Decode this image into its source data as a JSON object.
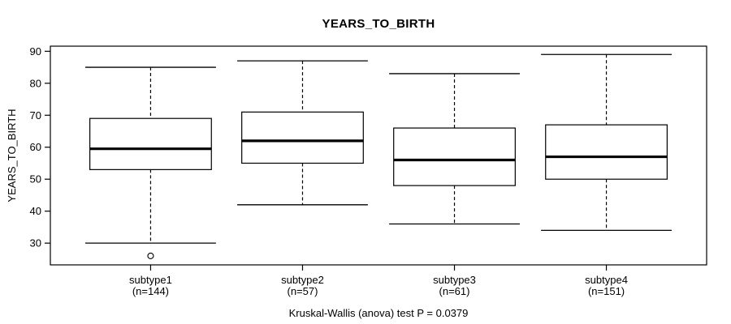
{
  "figure": {
    "title": "YEARS_TO_BIRTH",
    "ylabel": "YEARS_TO_BIRTH",
    "caption": "Kruskal-Wallis (anova) test P = 0.0379"
  },
  "chart_data": {
    "type": "boxplot",
    "title": "YEARS_TO_BIRTH",
    "xlabel": "",
    "ylabel": "YEARS_TO_BIRTH",
    "caption": "Kruskal-Wallis (anova) test P = 0.0379",
    "grid": false,
    "frame": true,
    "legend": "none",
    "ylim": [
      23.2,
      91.6
    ],
    "yticks": [
      30,
      40,
      50,
      60,
      70,
      80,
      90
    ],
    "xlim": [
      0.34,
      4.66
    ],
    "box_width": 0.8,
    "staple_width": 0.43,
    "categories": [
      "subtype1",
      "subtype2",
      "subtype3",
      "subtype4"
    ],
    "groups": [
      {
        "label": "subtype1",
        "n_label": "(n=144)",
        "x": 1,
        "whisker_low": 30,
        "q1": 53,
        "median": 59.5,
        "q3": 69,
        "whisker_high": 85,
        "outliers": [
          26
        ]
      },
      {
        "label": "subtype2",
        "n_label": "(n=57)",
        "x": 2,
        "whisker_low": 42,
        "q1": 55,
        "median": 62,
        "q3": 71,
        "whisker_high": 87,
        "outliers": []
      },
      {
        "label": "subtype3",
        "n_label": "(n=61)",
        "x": 3,
        "whisker_low": 36,
        "q1": 48,
        "median": 56,
        "q3": 66,
        "whisker_high": 83,
        "outliers": []
      },
      {
        "label": "subtype4",
        "n_label": "(n=151)",
        "x": 4,
        "whisker_low": 34,
        "q1": 50,
        "median": 57,
        "q3": 67,
        "whisker_high": 89,
        "outliers": []
      }
    ],
    "colors": {
      "stroke": "#000000",
      "median": "#000000",
      "box_fill": "#ffffff",
      "background": "#ffffff"
    }
  }
}
